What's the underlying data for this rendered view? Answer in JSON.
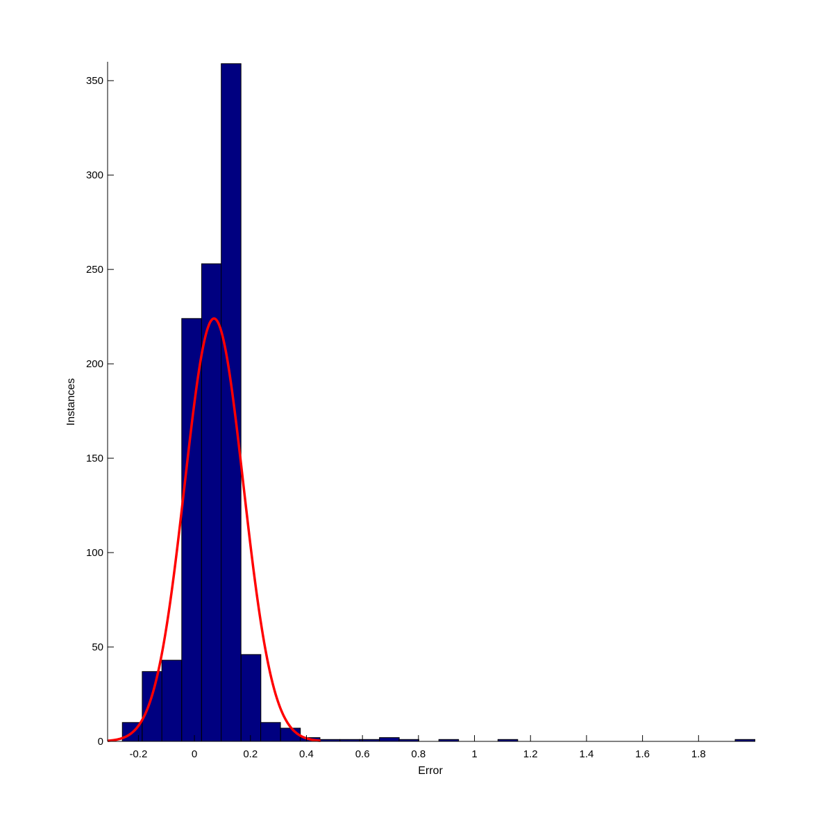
{
  "chart_data": {
    "type": "bar",
    "title": "",
    "xlabel": "Error",
    "ylabel": "Instances",
    "xlim": [
      -0.31,
      2.0
    ],
    "ylim": [
      0,
      360
    ],
    "grid": false,
    "bin_width": 0.0706,
    "xticks": [
      -0.2,
      0,
      0.2,
      0.4,
      0.6,
      0.8,
      1,
      1.2,
      1.4,
      1.6,
      1.8
    ],
    "xtick_labels": [
      "-0.2",
      "0",
      "0.2",
      "0.4",
      "0.6",
      "0.8",
      "1",
      "1.2",
      "1.4",
      "1.6",
      "1.8"
    ],
    "yticks": [
      0,
      50,
      100,
      150,
      200,
      250,
      300,
      350
    ],
    "ytick_labels": [
      "0",
      "50",
      "100",
      "150",
      "200",
      "250",
      "300",
      "350"
    ],
    "bar_color": "#000080",
    "series": [
      {
        "type": "histogram",
        "x": [
          -0.222,
          -0.151,
          -0.081,
          -0.01,
          0.061,
          0.131,
          0.202,
          0.272,
          0.343,
          0.413,
          0.484,
          0.555,
          0.625,
          0.696,
          0.766,
          0.837,
          0.908,
          0.978,
          1.049,
          1.119,
          1.19,
          1.26,
          1.331,
          1.402,
          1.472,
          1.543,
          1.613,
          1.684,
          1.755,
          1.825,
          1.896,
          1.966
        ],
        "values": [
          10,
          37,
          43,
          224,
          253,
          359,
          46,
          10,
          7,
          2,
          1,
          1,
          1,
          2,
          1,
          0,
          1,
          0,
          0,
          1,
          0,
          0,
          0,
          0,
          0,
          0,
          0,
          0,
          0,
          0,
          0,
          1
        ]
      },
      {
        "type": "line",
        "color": "#ff0000",
        "fit": "normal",
        "mu": 0.07,
        "sigma": 0.105,
        "peak": 224,
        "x_range": [
          -0.31,
          0.45
        ]
      }
    ]
  }
}
